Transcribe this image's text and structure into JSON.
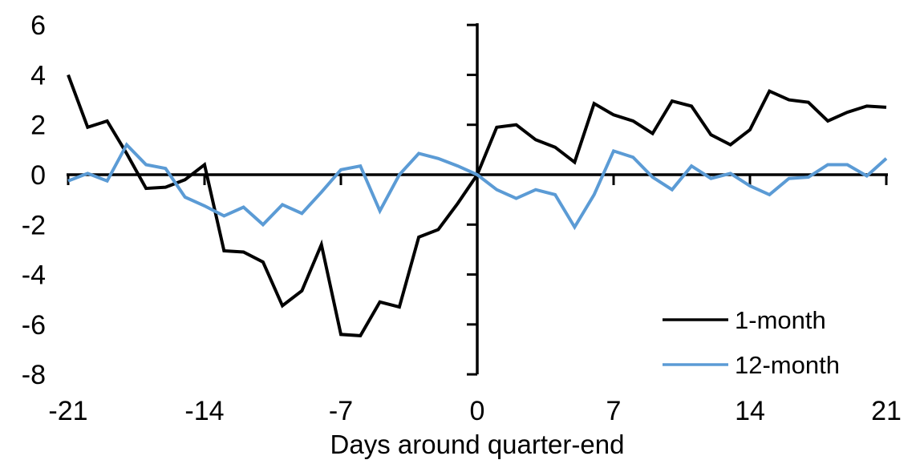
{
  "figure": {
    "background": "#ffffff",
    "axis_color": "#000000",
    "text_color": "#000000"
  },
  "chart_data": {
    "type": "line",
    "title": "",
    "xlabel": "Days around quarter-end",
    "ylabel": "",
    "xlim": [
      -21,
      21
    ],
    "ylim": [
      -8,
      6
    ],
    "grid": false,
    "legend_position": "inside-bottom-right",
    "x_ticks": [
      -21,
      -14,
      -7,
      0,
      7,
      14,
      21
    ],
    "x_tick_labels": [
      "-21",
      "-14",
      "-7",
      "0",
      "7",
      "14",
      "21"
    ],
    "y_ticks": [
      6,
      4,
      2,
      0,
      -2,
      -4,
      -6,
      -8
    ],
    "y_tick_labels": [
      "6",
      "4",
      "2",
      "0",
      "-2",
      "-4",
      "-6",
      "-8"
    ],
    "x": [
      -21,
      -20,
      -19,
      -18,
      -17,
      -16,
      -15,
      -14,
      -13,
      -12,
      -11,
      -10,
      -9,
      -8,
      -7,
      -6,
      -5,
      -4,
      -3,
      -2,
      -1,
      0,
      1,
      2,
      3,
      4,
      5,
      6,
      7,
      8,
      9,
      10,
      11,
      12,
      13,
      14,
      15,
      16,
      17,
      18,
      19,
      20,
      21
    ],
    "series": [
      {
        "name": "1-month",
        "color": "#000000",
        "values": [
          4.0,
          1.9,
          2.15,
          0.85,
          -0.55,
          -0.5,
          -0.2,
          0.4,
          -3.05,
          -3.1,
          -3.5,
          -5.25,
          -4.65,
          -2.8,
          -6.4,
          -6.45,
          -5.1,
          -5.3,
          -2.5,
          -2.2,
          -1.15,
          0,
          1.9,
          2.0,
          1.4,
          1.1,
          0.5,
          2.85,
          2.4,
          2.15,
          1.65,
          2.95,
          2.75,
          1.6,
          1.2,
          1.8,
          3.35,
          3.0,
          2.9,
          2.15,
          2.5,
          2.75,
          2.7
        ]
      },
      {
        "name": "12-month",
        "color": "#5B9BD5",
        "values": [
          -0.25,
          0.05,
          -0.25,
          1.2,
          0.4,
          0.25,
          -0.9,
          -1.25,
          -1.65,
          -1.3,
          -2.0,
          -1.2,
          -1.55,
          -0.7,
          0.2,
          0.35,
          -1.45,
          0.0,
          0.85,
          0.65,
          0.35,
          0,
          -0.6,
          -0.95,
          -0.6,
          -0.8,
          -2.1,
          -0.8,
          0.95,
          0.7,
          -0.1,
          -0.6,
          0.35,
          -0.15,
          0.05,
          -0.45,
          -0.8,
          -0.15,
          -0.1,
          0.4,
          0.4,
          -0.05,
          0.65
        ]
      }
    ]
  }
}
